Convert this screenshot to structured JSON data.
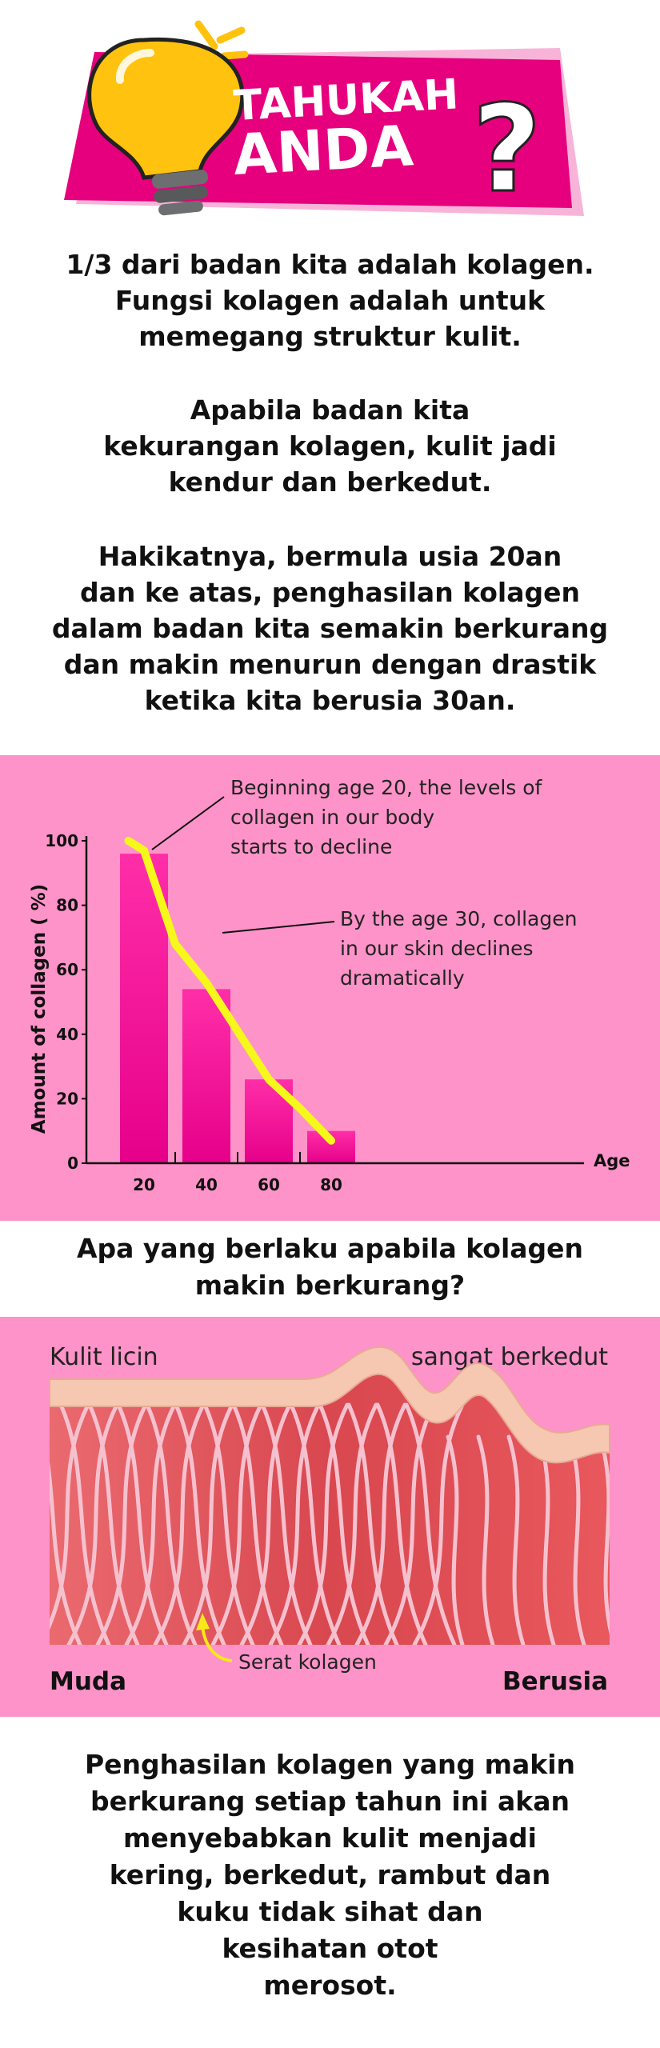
{
  "header": {
    "title_line1": "TAHUKAH",
    "title_line2": "ANDA",
    "mark": "?",
    "colors": {
      "banner": "#e6007e",
      "bulb": "#ffc20e",
      "accent": "#f8b4d8"
    },
    "icon": "lightbulb-icon"
  },
  "intro": {
    "p1": [
      "1/3 dari badan kita adalah kolagen.",
      "Fungsi kolagen adalah untuk",
      "memegang struktur kulit."
    ],
    "p2": [
      "Apabila badan kita",
      "kekurangan kolagen, kulit jadi",
      "kendur dan berkedut."
    ],
    "p3": [
      "Hakikatnya, bermula usia 20an",
      "dan ke atas, penghasilan kolagen",
      "dalam badan kita semakin berkurang",
      "dan makin menurun dengan drastik",
      "ketika kita berusia 30an."
    ]
  },
  "chart_data": {
    "type": "bar",
    "categories": [
      "20",
      "40",
      "60",
      "80"
    ],
    "values": [
      96,
      54,
      26,
      10
    ],
    "line": {
      "x": [
        15,
        20,
        30,
        40,
        50,
        60,
        70,
        80
      ],
      "y": [
        100,
        97,
        68,
        56,
        41,
        26,
        17,
        7
      ]
    },
    "ylabel": "Amount of collagen ( %)",
    "xlabel": "Age",
    "ylim": [
      0,
      100
    ],
    "yticks": [
      0,
      20,
      40,
      60,
      80,
      100
    ],
    "annotations": [
      [
        "Beginning age 20, the levels of",
        "collagen in our body",
        "starts to decline"
      ],
      [
        "By the age 30, collagen",
        "in our skin declines",
        "dramatically"
      ]
    ],
    "colors": {
      "bar_top": "#ff2ea8",
      "bar_bottom": "#e8008a",
      "line": "#f6f71a",
      "background": "#fd93c8"
    },
    "grid": false
  },
  "question": [
    "Apa yang berlaku apabila kolagen",
    "makin berkurang?"
  ],
  "skin": {
    "label_left_top": "Kulit licin",
    "label_right_top": "sangat berkedut",
    "label_fiber": "Serat kolagen",
    "label_left_bottom": "Muda",
    "label_right_bottom": "Berusia"
  },
  "closing": [
    "Penghasilan kolagen yang makin",
    "berkurang setiap tahun ini akan",
    "menyebabkan kulit menjadi",
    "kering, berkedut, rambut dan",
    "kuku tidak sihat dan",
    "kesihatan otot",
    "merosot."
  ]
}
